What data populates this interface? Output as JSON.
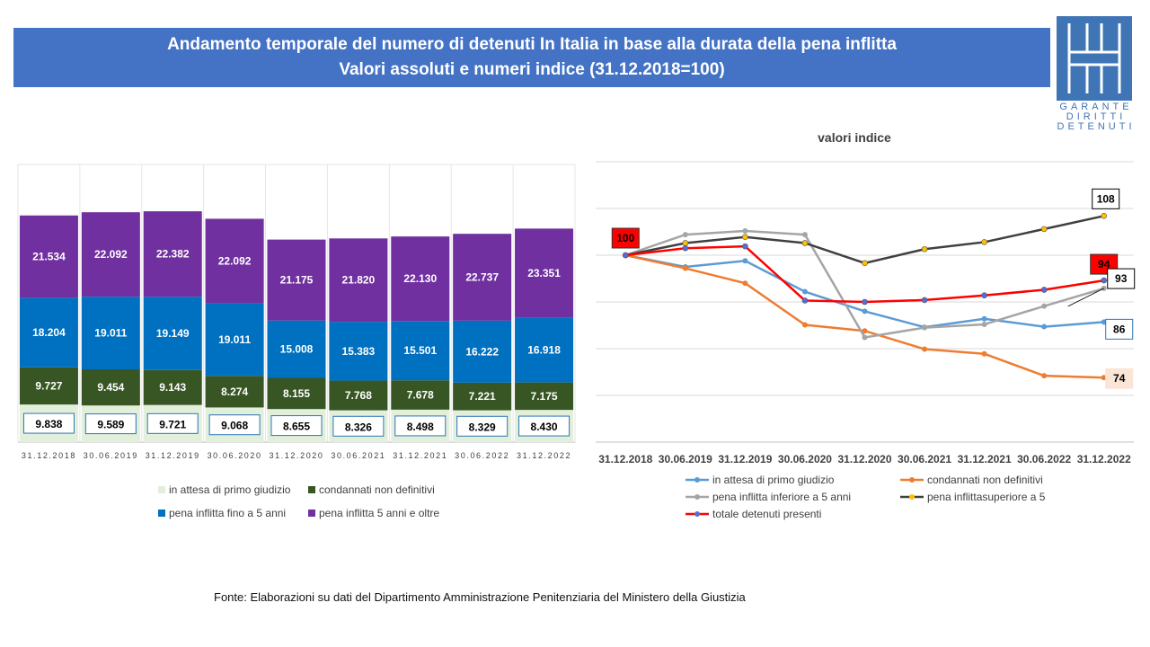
{
  "header": {
    "title_line1": "Andamento temporale del numero di detenuti In Italia in base alla durata della pena inflitta",
    "title_line2": "Valori assoluti e numeri indice (31.12.2018=100)"
  },
  "logo": {
    "text_lines": [
      "GARANTE",
      "DIRITTI",
      "DETENUTI"
    ],
    "icon": "garante-logo-icon",
    "color": "#3f74b5"
  },
  "source": "Fonte:  Elaborazioni su dati del Dipartimento  Amministrazione Penitenziaria del Ministero della Giustizia",
  "chart_data": [
    {
      "type": "bar",
      "stacked": true,
      "categories": [
        "31.12.2018",
        "30.06.2019",
        "31.12.2019",
        "30.06.2020",
        "31.12.2020",
        "30.06.2021",
        "31.12.2021",
        "30.06.2022",
        "31.12.2022"
      ],
      "series": [
        {
          "name": "in attesa di primo giudizio",
          "color": "#e2efda",
          "values": [
            9838,
            9589,
            9721,
            9068,
            8655,
            8326,
            8498,
            8329,
            8430
          ],
          "labels": [
            "9.838",
            "9.589",
            "9.721",
            "9.068",
            "8.655",
            "8.326",
            "8.498",
            "8.329",
            "8.430"
          ]
        },
        {
          "name": "condannati non definitivi",
          "color": "#375623",
          "values": [
            9727,
            9454,
            9143,
            8274,
            8155,
            7768,
            7678,
            7221,
            7175
          ],
          "labels": [
            "9.727",
            "9.454",
            "9.143",
            "8.274",
            "8.155",
            "7.768",
            "7.678",
            "7.221",
            "7.175"
          ]
        },
        {
          "name": "pena inflitta fino a 5 anni",
          "color": "#0070c0",
          "values": [
            18204,
            19011,
            19149,
            19011,
            15008,
            15383,
            15501,
            16222,
            16918
          ],
          "labels": [
            "18.204",
            "19.011",
            "19.149",
            "19.011",
            "15.008",
            "15.383",
            "15.501",
            "16.222",
            "16.918"
          ]
        },
        {
          "name": "pena inflitta 5 anni e oltre",
          "color": "#7030a0",
          "values": [
            21534,
            22092,
            22382,
            22092,
            21175,
            21820,
            22130,
            22737,
            23351
          ],
          "labels": [
            "21.534",
            "22.092",
            "22.382",
            "22.092",
            "21.175",
            "21.820",
            "22.130",
            "22.737",
            "23.351"
          ]
        }
      ],
      "legend_position": "bottom",
      "grid": false
    },
    {
      "type": "line",
      "title": "valori indice",
      "x": [
        "31.12.2018",
        "30.06.2019",
        "31.12.2019",
        "30.06.2020",
        "31.12.2020",
        "30.06.2021",
        "31.12.2021",
        "30.06.2022",
        "31.12.2022"
      ],
      "ylim": [
        60,
        120
      ],
      "grid": true,
      "series": [
        {
          "name": "in attesa di primo giudizio",
          "color": "#5b9bd5",
          "values": [
            100,
            97.5,
            98.8,
            92.2,
            88,
            84.6,
            86.4,
            84.7,
            85.7
          ]
        },
        {
          "name": "condannati non definitivi",
          "color": "#ed7d31",
          "values": [
            100,
            97.2,
            94,
            85.1,
            83.8,
            79.9,
            78.9,
            74.2,
            73.8
          ]
        },
        {
          "name": "pena inflitta inferiore a 5 anni",
          "color": "#a5a5a5",
          "values": [
            100,
            104.4,
            105.2,
            104.4,
            82.4,
            84.5,
            85.2,
            89.1,
            92.9
          ]
        },
        {
          "name": "pena inflittasuperiore a 5",
          "color": "#404040",
          "marker": "#ffc000",
          "values": [
            100,
            102.6,
            103.9,
            102.6,
            98.3,
            101.3,
            102.8,
            105.6,
            108.4
          ]
        },
        {
          "name": "totale detenuti presenti",
          "color": "#ff0000",
          "marker": "#5b6bd5",
          "values": [
            100,
            101.5,
            101.9,
            90.3,
            90,
            90.4,
            91.4,
            92.6,
            94.6
          ]
        }
      ],
      "annotations": [
        {
          "text": "100",
          "at": "31.12.2018"
        },
        {
          "text": "108",
          "series": "pena inflittasuperiore a 5"
        },
        {
          "text": "94",
          "series": "totale detenuti presenti"
        },
        {
          "text": "93",
          "series": "pena inflitta inferiore a 5 anni"
        },
        {
          "text": "86",
          "series": "in attesa di primo giudizio"
        },
        {
          "text": "74",
          "series": "condannati non definitivi"
        }
      ],
      "legend_position": "bottom"
    }
  ]
}
